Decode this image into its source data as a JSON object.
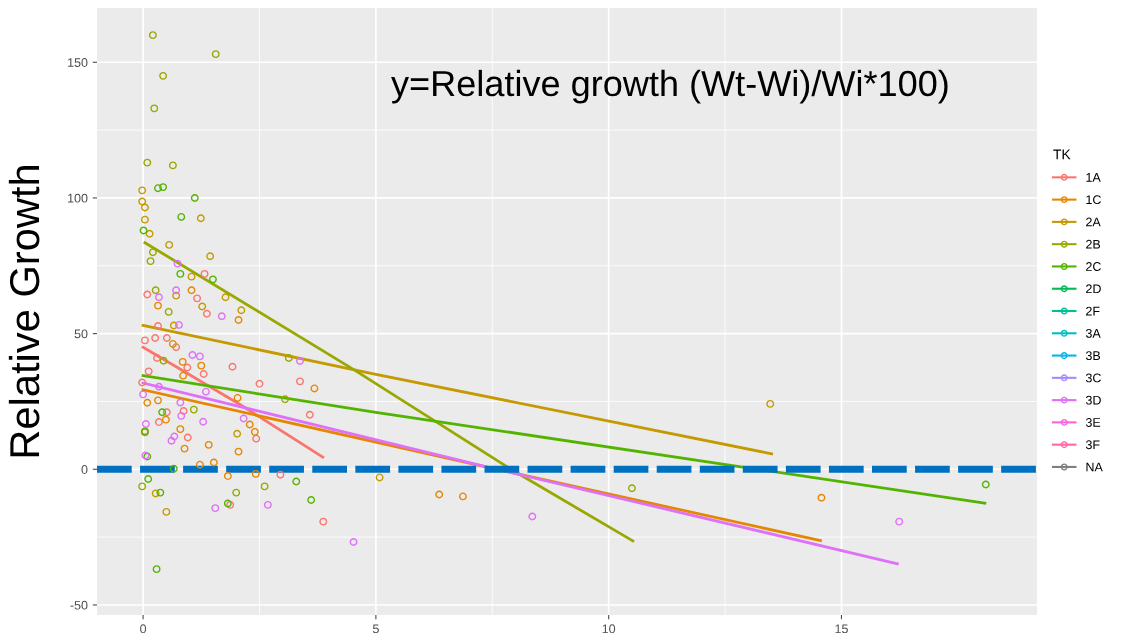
{
  "chart_data": {
    "type": "scatter",
    "ylabel": "Relative Growth",
    "legend_title": "TK",
    "annotations": [
      "y=Relative growth (Wt-Wi)/Wi*100)"
    ],
    "xlim": [
      -0.99,
      19.2
    ],
    "ylim": [
      -53.7,
      170
    ],
    "xticks": [
      0,
      5,
      10,
      15
    ],
    "yticks": [
      -50,
      0,
      50,
      100,
      150
    ],
    "grid": true,
    "legend": "right",
    "marker": "circle",
    "ref_lines": [
      {
        "axis": "y",
        "value": 0,
        "color": "#0070c0",
        "line_style": "dashed"
      }
    ],
    "series": [
      {
        "name": "1A",
        "color": "#f8766d",
        "x": [
          0.09,
          1.32,
          1.16,
          1.37,
          0.32,
          0.26,
          0.51,
          0.04,
          0.71,
          0.12,
          0.3,
          0.95,
          1.3,
          1.92,
          2.5,
          -0.02,
          0.51,
          0.34,
          0.87,
          0.96,
          3.37,
          3.58,
          2.43,
          2.95,
          1.87,
          3.87
        ],
        "values": [
          64.4,
          72,
          63,
          57.3,
          52.8,
          48.4,
          48.4,
          47.5,
          45,
          36.1,
          41,
          37.5,
          35.1,
          37.8,
          31.5,
          32,
          21,
          17.4,
          21.5,
          11.7,
          32.4,
          20.1,
          11.3,
          -2,
          -13.1,
          -19.3
        ]
      },
      {
        "name": "1C",
        "color": "#e58700",
        "x": [
          0.32,
          1.04,
          2.05,
          0.85,
          1.25,
          0.86,
          2.03,
          0.09,
          0.32,
          0.49,
          0.8,
          2.29,
          2.4,
          1.41,
          0.89,
          2.05,
          1.22,
          1.52,
          1.82,
          2.42,
          3.68,
          0.04,
          6.36,
          6.87,
          14.57
        ],
        "values": [
          60.3,
          66,
          55,
          39.6,
          38.2,
          34.5,
          26.3,
          24.5,
          25.4,
          18.3,
          14.8,
          16.5,
          13.8,
          9,
          7.6,
          6.5,
          1.7,
          2.5,
          -2.5,
          -1.7,
          29.8,
          13.6,
          -9.3,
          -10,
          -10.5
        ]
      },
      {
        "name": "2A",
        "color": "#c49a00",
        "x": [
          -0.02,
          -0.02,
          0.04,
          0.04,
          1.24,
          0.14,
          0.56,
          1.44,
          1.04,
          0.71,
          1.77,
          1.27,
          2.11,
          0.66,
          0.64,
          2.02,
          0.27,
          0.5,
          5.08,
          13.47
        ],
        "values": [
          102.8,
          98.7,
          96.5,
          92,
          92.5,
          86.8,
          82.7,
          78.5,
          71,
          64,
          63.4,
          60,
          58.6,
          53,
          46.2,
          13.1,
          -8.9,
          -15.7,
          -3,
          24.1
        ]
      },
      {
        "name": "2B",
        "color": "#99a800",
        "x": [
          0.21,
          1.56,
          0.43,
          0.24,
          0.09,
          0.64,
          0.27,
          0.55,
          0.44,
          1.09,
          3.05,
          3.13,
          -0.02,
          2.0,
          2.61,
          0.16,
          0.21,
          10.5
        ],
        "values": [
          160,
          153,
          145,
          133,
          113,
          112,
          66,
          58,
          40,
          22,
          25.8,
          41,
          -6.3,
          -8.6,
          -6.3,
          76.7,
          80,
          -7
        ]
      },
      {
        "name": "2C",
        "color": "#53b400",
        "x": [
          0.32,
          0.43,
          1.11,
          0.82,
          0.01,
          0.8,
          1.5,
          0.41,
          0.04,
          0.09,
          0.66,
          0.11,
          0.37,
          1.82,
          3.29,
          3.61,
          0.29,
          18.1
        ],
        "values": [
          103.6,
          104,
          100,
          93,
          88,
          72,
          70,
          21,
          14,
          4.7,
          0.2,
          -3.6,
          -8.6,
          -12.6,
          -4.5,
          -11.3,
          -36.8,
          -5.6
        ]
      },
      {
        "name": "2D",
        "color": "#00bc56"
      },
      {
        "name": "2F",
        "color": "#00c094"
      },
      {
        "name": "3A",
        "color": "#00bfc4"
      },
      {
        "name": "3B",
        "color": "#00b6eb"
      },
      {
        "name": "3C",
        "color": "#a58aff"
      },
      {
        "name": "3D",
        "color": "#df70f8",
        "x": [
          0.74,
          0.71,
          0.34,
          1.69,
          0.77,
          1.06,
          1.22,
          3.37,
          0.34,
          1.35,
          0,
          0.8,
          2.16,
          0.06,
          0.82,
          1.29,
          0.67,
          0.61,
          0.05,
          1.55,
          2.68,
          4.52,
          8.36,
          16.24
        ],
        "values": [
          75.8,
          66,
          63.4,
          56.4,
          53.2,
          42.1,
          41.6,
          39.9,
          30.4,
          28.6,
          27.6,
          24.6,
          18.7,
          16.7,
          19.7,
          17.5,
          12.1,
          10.5,
          5.1,
          -14.3,
          -13.1,
          -26.8,
          -17.4,
          -19.3
        ]
      },
      {
        "name": "3E",
        "color": "#fb61d7"
      },
      {
        "name": "3F",
        "color": "#ff66a8"
      },
      {
        "name": "NA",
        "color": "#7f7f7f"
      },
      {
        "type": "line",
        "marker": "none",
        "color": "#f8766d",
        "x": [
          0,
          2.09,
          3.86
        ],
        "values": [
          45,
          23.8,
          4.5
        ]
      },
      {
        "type": "line",
        "marker": "none",
        "color": "#e58700",
        "x": [
          0,
          7.6,
          14.55
        ],
        "values": [
          29.3,
          0,
          -26.3
        ]
      },
      {
        "type": "line",
        "marker": "none",
        "color": "#c49a00",
        "x": [
          0,
          5,
          13.5
        ],
        "values": [
          53,
          35,
          5.7
        ]
      },
      {
        "type": "line",
        "marker": "none",
        "color": "#99a800",
        "x": [
          0.04,
          4.5,
          7.9,
          10.52
        ],
        "values": [
          83.5,
          37,
          0,
          -26.4
        ]
      },
      {
        "type": "line",
        "marker": "none",
        "color": "#53b400",
        "x": [
          0,
          5,
          13.2,
          18.08
        ],
        "values": [
          34.5,
          21,
          0,
          -12.5
        ]
      },
      {
        "type": "line",
        "marker": "none",
        "color": "#df70f8",
        "x": [
          0,
          7.6,
          16.2
        ],
        "values": [
          31.8,
          0,
          -34.8
        ]
      }
    ]
  }
}
